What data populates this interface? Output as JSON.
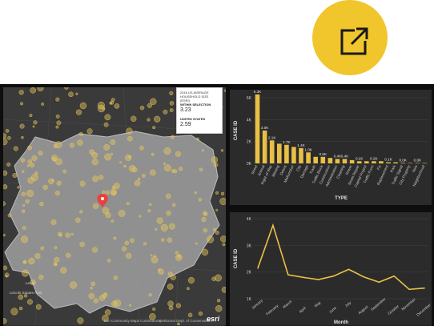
{
  "popup": {
    "title": "2016 US AVERAGE HOUSEHOLD SIZE (ESRI)",
    "within_label": "WITHIN SELECTION",
    "within_value": "3.23",
    "us_label": "UNITED STATES",
    "us_value": "2.59"
  },
  "map": {
    "place_labels": [
      "Lenox",
      "Lincoln Square Park"
    ],
    "attribution": "Esri Community Maps Contributors, Missouri Dept. of Conservation, ...",
    "logo": "esri",
    "pin_icon": "map-pin-icon",
    "colors": {
      "background": "#3a3a3a",
      "selection": "#9a9a9a",
      "points": "#e9c85a",
      "pin": "#e8423f"
    }
  },
  "open_button": {
    "icon": "open-external-icon",
    "color": "#f0c62c"
  },
  "chart_data": [
    {
      "type": "bar",
      "ylabel": "CASE ID",
      "xlabel": "TYPE",
      "ylim": [
        0,
        6
      ],
      "y_ticks": [
        "0K",
        "2K",
        "4K",
        "6K"
      ],
      "categories": [
        "Street",
        "Animal",
        "Right of Way",
        "Missing",
        "Debris",
        "Malfunction",
        "City",
        "Damage",
        "Trash",
        "Traffic Block",
        "Construction",
        "Administration",
        "Cleaning",
        "Sewer",
        "Street Repair",
        "Capital Project",
        "Traffic Form",
        "Fix",
        "Replacement",
        "Park",
        "Traffic Signal",
        "City Property",
        "New",
        "Neighborhood"
      ],
      "values": [
        6.3,
        3.0,
        2.1,
        1.8,
        1.7,
        1.5,
        1.4,
        1.0,
        0.6,
        0.6,
        0.5,
        0.4,
        0.4,
        0.3,
        0.2,
        0.2,
        0.2,
        0.2,
        0.1,
        0.1,
        0.05,
        0.0,
        0.0,
        0.0
      ],
      "data_labels": [
        "6.3K",
        "3.0K",
        "2.1K",
        "",
        "1.7K",
        "",
        "1.4K",
        "1.0K",
        "",
        "0.6K",
        "",
        "0.4K",
        "0.4K",
        "",
        "0.2K",
        "",
        "0.2K",
        "",
        "0.1K",
        "",
        "0.0K",
        "",
        "0.0K",
        ""
      ],
      "bar_color": "#e9c046"
    },
    {
      "type": "line",
      "ylabel": "CASE ID",
      "xlabel": "Month",
      "ylim": [
        1,
        4
      ],
      "y_ticks": [
        "1K",
        "2K",
        "3K",
        "4K"
      ],
      "x": [
        "January",
        "February",
        "March",
        "April",
        "May",
        "June",
        "July",
        "August",
        "September",
        "October",
        "November",
        "December"
      ],
      "values": [
        2.15,
        3.75,
        1.9,
        1.8,
        1.72,
        1.85,
        2.1,
        1.82,
        1.62,
        1.85,
        1.35,
        1.4
      ],
      "line_color": "#e9c046"
    }
  ]
}
